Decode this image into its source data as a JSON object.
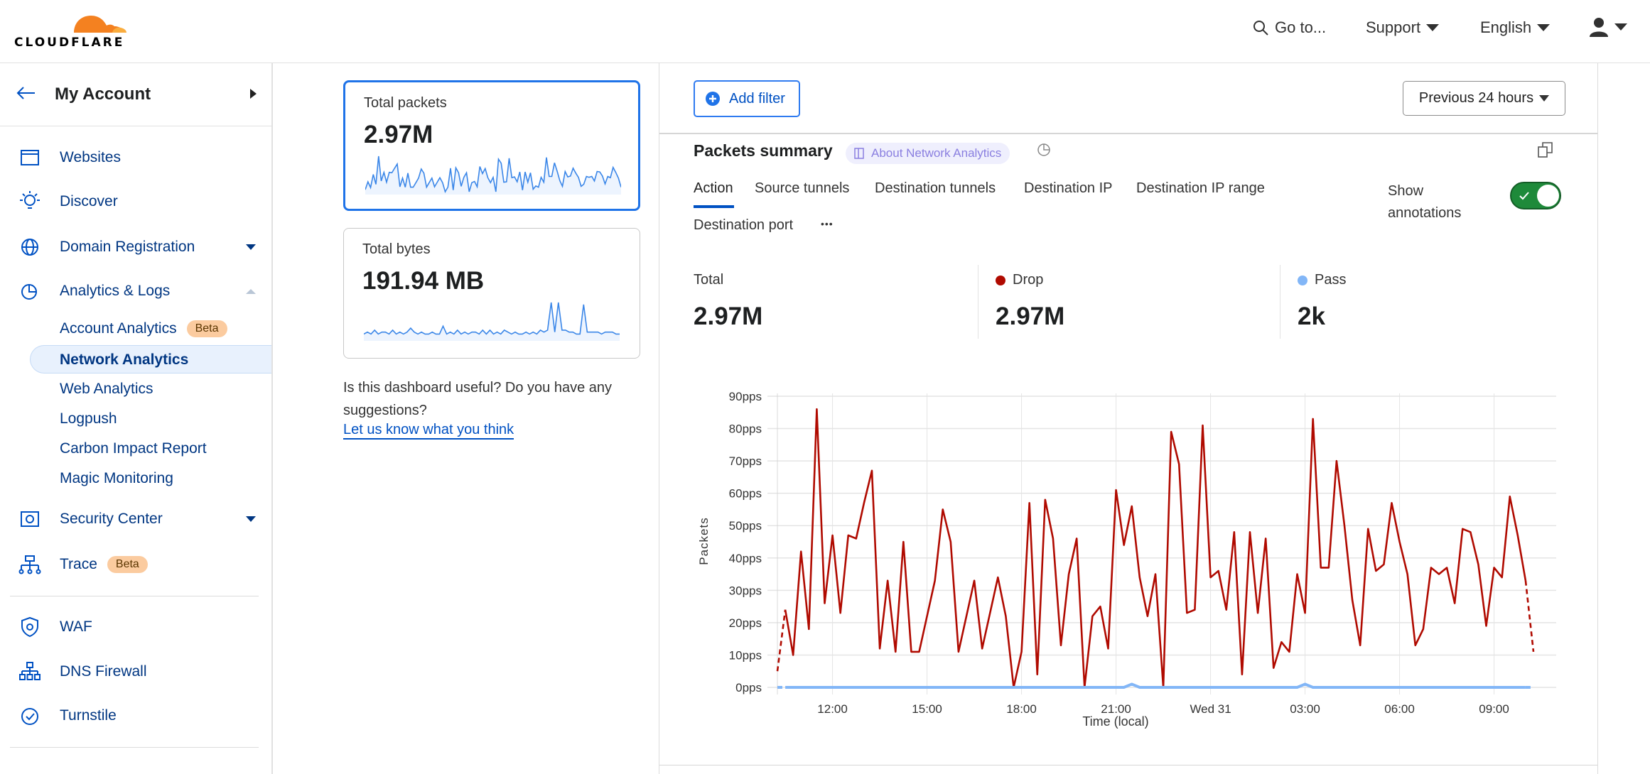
{
  "header": {
    "logo_text": "CLOUDFLARE",
    "goto": "Go to...",
    "support": "Support",
    "language": "English"
  },
  "sidebar": {
    "account": "My Account",
    "items": [
      {
        "label": "Websites",
        "icon": "browser-window-icon"
      },
      {
        "label": "Discover",
        "icon": "lightbulb-icon"
      },
      {
        "label": "Domain Registration",
        "icon": "globe-icon"
      },
      {
        "label": "Analytics & Logs",
        "icon": "pie-chart-icon"
      },
      {
        "label": "Security Center",
        "icon": "security-center-icon"
      },
      {
        "label": "Trace",
        "icon": "trace-network-icon",
        "badge": "Beta"
      },
      {
        "label": "WAF",
        "icon": "shield-gear-icon"
      },
      {
        "label": "DNS Firewall",
        "icon": "hierarchy-icon"
      },
      {
        "label": "Turnstile",
        "icon": "turnstile-icon"
      }
    ],
    "sub_items": [
      {
        "label": "Account Analytics",
        "badge": "Beta"
      },
      {
        "label": "Network Analytics",
        "active": true
      },
      {
        "label": "Web Analytics"
      },
      {
        "label": "Logpush"
      },
      {
        "label": "Carbon Impact Report"
      },
      {
        "label": "Magic Monitoring"
      }
    ]
  },
  "cards": [
    {
      "title": "Total packets",
      "value": "2.97M",
      "selected": true
    },
    {
      "title": "Total bytes",
      "value": "191.94 MB",
      "selected": false,
      "spark": [
        2,
        3,
        2,
        4,
        2,
        3,
        3,
        2,
        4,
        2,
        3,
        2,
        3,
        5,
        3,
        2,
        3,
        2,
        2,
        3,
        2,
        2,
        6,
        2,
        3,
        2,
        4,
        2,
        3,
        2,
        3,
        3,
        2,
        4,
        2,
        4,
        2,
        3,
        2,
        4,
        3,
        2,
        3,
        2,
        2,
        3,
        2,
        3,
        2,
        4,
        3,
        4,
        18,
        3,
        18,
        4,
        4,
        3,
        3,
        2,
        2,
        17,
        3,
        3,
        3,
        3,
        2,
        3,
        3,
        3,
        2,
        2
      ]
    }
  ],
  "feedback": {
    "text": "Is this dashboard useful? Do you have any suggestions?",
    "link": "Let us know what you think"
  },
  "toolbar": {
    "add_filter": "Add filter",
    "time_range": "Previous 24 hours"
  },
  "summary": {
    "title": "Packets summary",
    "about": "About Network Analytics",
    "tabs": [
      "Action",
      "Source tunnels",
      "Destination tunnels",
      "Destination IP",
      "Destination IP range",
      "Destination port"
    ],
    "active_tab": "Action",
    "more": "•••",
    "annotations_label": "Show annotations",
    "annotations_on": true,
    "stats": [
      {
        "label": "Total",
        "value": "2.97M"
      },
      {
        "label": "Drop",
        "value": "2.97M",
        "color": "#b00a00"
      },
      {
        "label": "Pass",
        "value": "2k",
        "color": "#82b6f7"
      }
    ]
  },
  "chart_data": {
    "type": "line",
    "xlabel": "Time (local)",
    "ylabel": "Packets",
    "ylim": [
      0,
      90
    ],
    "yticks": [
      "0pps",
      "10pps",
      "20pps",
      "30pps",
      "40pps",
      "50pps",
      "60pps",
      "70pps",
      "80pps",
      "90pps"
    ],
    "xticks": [
      "12:00",
      "15:00",
      "18:00",
      "21:00",
      "Wed 31",
      "03:00",
      "06:00",
      "09:00"
    ],
    "grid": true,
    "x": [
      "10:15",
      "10:30",
      "10:45",
      "11:00",
      "11:15",
      "11:30",
      "11:45",
      "12:00",
      "12:15",
      "12:30",
      "12:45",
      "13:00",
      "13:15",
      "13:30",
      "13:45",
      "14:00",
      "14:15",
      "14:30",
      "14:45",
      "15:00",
      "15:15",
      "15:30",
      "15:45",
      "16:00",
      "16:15",
      "16:30",
      "16:45",
      "17:00",
      "17:15",
      "17:30",
      "17:45",
      "18:00",
      "18:15",
      "18:30",
      "18:45",
      "19:00",
      "19:15",
      "19:30",
      "19:45",
      "20:00",
      "20:15",
      "20:30",
      "20:45",
      "21:00",
      "21:15",
      "21:30",
      "21:45",
      "22:00",
      "22:15",
      "22:30",
      "22:45",
      "23:00",
      "23:15",
      "23:30",
      "23:45",
      "Wed 31",
      "00:15",
      "00:30",
      "00:45",
      "01:00",
      "01:15",
      "01:30",
      "01:45",
      "02:00",
      "02:15",
      "02:30",
      "02:45",
      "03:00",
      "03:15",
      "03:30",
      "03:45",
      "04:00",
      "04:15",
      "04:30",
      "04:45",
      "05:00",
      "05:15",
      "05:30",
      "05:45",
      "06:00",
      "06:15",
      "06:30",
      "06:45",
      "07:00",
      "07:15",
      "07:30",
      "07:45",
      "08:00",
      "08:15",
      "08:30",
      "08:45",
      "09:00",
      "09:15",
      "09:30",
      "09:45",
      "10:00",
      "10:15"
    ],
    "series": [
      {
        "name": "Drop",
        "color": "#b00a00",
        "values": [
          5,
          24,
          10,
          42,
          18,
          86,
          26,
          47,
          23,
          47,
          46,
          57,
          67,
          12,
          33,
          11,
          45,
          11,
          11,
          22,
          33,
          55,
          45,
          11,
          22,
          33,
          12,
          23,
          34,
          22,
          0,
          11,
          57,
          4,
          58,
          46,
          13,
          35,
          46,
          0,
          22,
          25,
          12,
          61,
          44,
          56,
          34,
          22,
          35,
          0,
          79,
          69,
          23,
          24,
          81,
          34,
          36,
          24,
          48,
          4,
          48,
          23,
          46,
          6,
          14,
          11,
          35,
          23,
          83,
          37,
          37,
          70,
          50,
          27,
          13,
          49,
          36,
          38,
          57,
          45,
          35,
          13,
          18,
          37,
          35,
          37,
          26,
          49,
          48,
          38,
          19,
          37,
          34,
          59,
          47,
          33,
          11
        ]
      },
      {
        "name": "Pass",
        "color": "#82b6f7",
        "values": [
          0,
          0,
          0,
          0,
          0,
          0,
          0,
          0,
          0,
          0,
          0,
          0,
          0,
          0,
          0,
          0,
          0,
          0,
          0,
          0,
          0,
          0,
          0,
          0,
          0,
          0,
          0,
          0,
          0,
          0,
          0,
          0,
          0,
          0,
          0,
          0,
          0,
          0,
          0,
          0,
          0,
          0,
          0,
          0,
          0,
          1,
          0,
          0,
          0,
          0,
          0,
          0,
          0,
          0,
          0,
          0,
          0,
          0,
          0,
          0,
          0,
          0,
          0,
          0,
          0,
          0,
          0,
          1,
          0,
          0,
          0,
          0,
          0,
          0,
          0,
          0,
          0,
          0,
          0,
          0,
          0,
          0,
          0,
          0,
          0,
          0,
          0,
          0,
          0,
          0,
          0,
          0,
          0,
          0,
          0,
          0,
          0
        ]
      }
    ]
  }
}
